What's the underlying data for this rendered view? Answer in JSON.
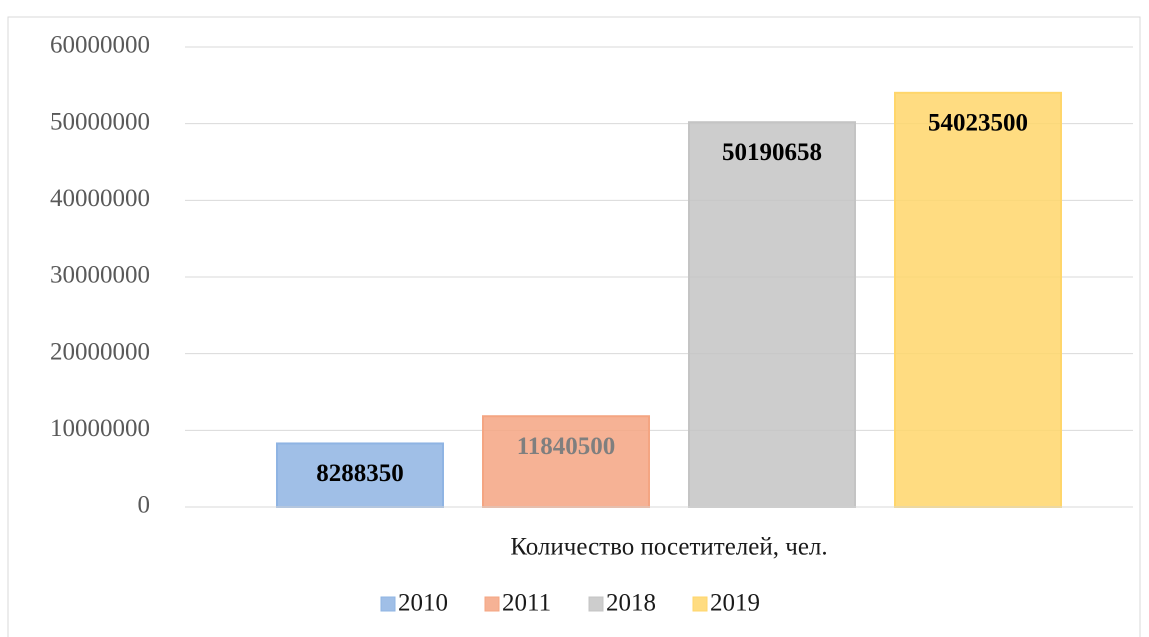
{
  "chart_data": {
    "type": "bar",
    "categories": [
      "Количество посетителей, чел."
    ],
    "series": [
      {
        "name": "2010",
        "color": "#8fb4e3",
        "label_color": "#000000",
        "values": [
          8288350
        ]
      },
      {
        "name": "2011",
        "color": "#f4a582",
        "label_color": "#7f7f7f",
        "values": [
          11840500
        ]
      },
      {
        "name": "2018",
        "color": "#c4c4c4",
        "label_color": "#000000",
        "values": [
          50190658
        ]
      },
      {
        "name": "2019",
        "color": "#ffd66b",
        "label_color": "#000000",
        "values": [
          54023500
        ]
      }
    ],
    "ylim": [
      0,
      60000000
    ],
    "yticks": [
      0,
      10000000,
      20000000,
      30000000,
      40000000,
      50000000,
      60000000
    ],
    "grid": true,
    "legend": "bottom"
  }
}
